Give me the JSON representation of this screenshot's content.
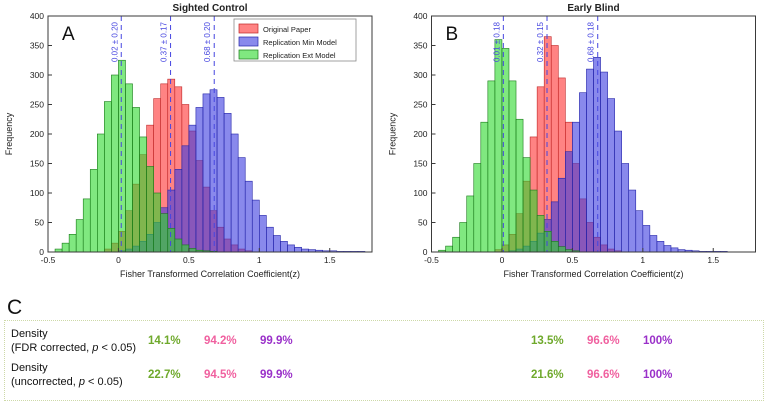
{
  "colors": {
    "original_face": "#ff3030",
    "original_edge": "#bf2626",
    "min_face": "#3a3ae0",
    "min_edge": "#2424a8",
    "ext_face": "#2bd82b",
    "ext_edge": "#1a7a1a",
    "mean_line": "#4646e0",
    "table_green": "#6fa92c",
    "table_pink": "#f0609f",
    "table_purple": "#9a30c9"
  },
  "chart_data": [
    {
      "type": "histogram",
      "panel": "A",
      "title": "Sighted Control",
      "xlabel": "Fisher Transformed Correlation Coefficient(z)",
      "ylabel": "Frequency",
      "xlim": [
        -0.5,
        1.8
      ],
      "ylim": [
        0,
        400
      ],
      "xticks": [
        -0.5,
        0,
        0.5,
        1,
        1.5
      ],
      "yticks": [
        0,
        50,
        100,
        150,
        200,
        250,
        300,
        350,
        400
      ],
      "bin_width": 0.05,
      "mean_line_color": "#4646e0",
      "show_legend": true,
      "legend_position": "top-center-inside",
      "series": [
        {
          "name": "Original Paper",
          "color": "#ff3030",
          "edge": "#bf2626",
          "bins_start": -0.1,
          "counts": [
            5,
            15,
            35,
            70,
            115,
            165,
            215,
            260,
            285,
            293,
            280,
            250,
            205,
            155,
            110,
            70,
            42,
            22,
            12,
            5,
            2
          ]
        },
        {
          "name": "Replication Min Model",
          "color": "#3a3ae0",
          "edge": "#2424a8",
          "bins_start": 0.0,
          "counts": [
            2,
            5,
            10,
            18,
            30,
            50,
            75,
            105,
            140,
            180,
            215,
            245,
            268,
            275,
            262,
            235,
            200,
            160,
            120,
            88,
            62,
            42,
            28,
            18,
            12,
            8,
            5,
            4,
            3,
            2,
            2,
            1,
            1,
            1,
            1
          ]
        },
        {
          "name": "Replication Ext Model",
          "color": "#2bd82b",
          "edge": "#1a7a1a",
          "bins_start": -0.45,
          "counts": [
            5,
            15,
            30,
            55,
            90,
            140,
            200,
            255,
            300,
            325,
            285,
            245,
            195,
            145,
            100,
            65,
            40,
            22,
            12,
            6,
            3,
            2,
            1
          ]
        }
      ],
      "mean_lines": [
        {
          "x": 0.02,
          "label": "0.02 ± 0.20"
        },
        {
          "x": 0.37,
          "label": "0.37 ± 0.17"
        },
        {
          "x": 0.68,
          "label": "0.68 ± 0.20"
        }
      ]
    },
    {
      "type": "histogram",
      "panel": "B",
      "title": "Early Blind",
      "xlabel": "Fisher Transformed Correlation Coefficient(z)",
      "ylabel": "Frequency",
      "xlim": [
        -0.5,
        1.8
      ],
      "ylim": [
        0,
        400
      ],
      "xticks": [
        -0.5,
        0,
        0.5,
        1,
        1.5
      ],
      "yticks": [
        0,
        50,
        100,
        150,
        200,
        250,
        300,
        350,
        400
      ],
      "bin_width": 0.05,
      "mean_line_color": "#4646e0",
      "show_legend": false,
      "series": [
        {
          "name": "Original Paper",
          "color": "#ff3030",
          "edge": "#bf2626",
          "bins_start": -0.05,
          "counts": [
            4,
            12,
            30,
            65,
            120,
            195,
            280,
            365,
            350,
            295,
            220,
            150,
            90,
            50,
            25,
            12,
            5,
            2
          ]
        },
        {
          "name": "Replication Min Model",
          "color": "#3a3ae0",
          "edge": "#2424a8",
          "bins_start": 0.05,
          "counts": [
            2,
            5,
            10,
            18,
            32,
            55,
            85,
            125,
            170,
            220,
            270,
            310,
            330,
            305,
            260,
            205,
            150,
            105,
            70,
            45,
            28,
            18,
            11,
            7,
            4,
            3,
            2,
            1,
            1,
            1,
            1
          ]
        },
        {
          "name": "Replication Ext Model",
          "color": "#2bd82b",
          "edge": "#1a7a1a",
          "bins_start": -0.45,
          "counts": [
            3,
            10,
            25,
            50,
            95,
            150,
            220,
            290,
            360,
            345,
            290,
            225,
            160,
            105,
            62,
            35,
            18,
            9,
            4,
            2
          ]
        }
      ],
      "mean_lines": [
        {
          "x": 0.01,
          "label": "0.01 ± 0.18"
        },
        {
          "x": 0.32,
          "label": "0.32 ± 0.15"
        },
        {
          "x": 0.68,
          "label": "0.68 ± 0.18"
        }
      ]
    }
  ],
  "panel_c": {
    "letter": "C",
    "rows": [
      {
        "label": "Density",
        "sub_prefix": "(FDR corrected, ",
        "sub_italic": "p",
        "sub_suffix": " < 0.05)",
        "left_values": [
          {
            "text": "14.1%",
            "color": "#6fa92c"
          },
          {
            "text": "94.2%",
            "color": "#f0609f"
          },
          {
            "text": "99.9%",
            "color": "#9a30c9"
          }
        ],
        "right_values": [
          {
            "text": "13.5%",
            "color": "#6fa92c"
          },
          {
            "text": "96.6%",
            "color": "#f0609f"
          },
          {
            "text": "100%",
            "color": "#9a30c9"
          }
        ]
      },
      {
        "label": "Density",
        "sub_prefix": "(uncorrected, ",
        "sub_italic": "p",
        "sub_suffix": " < 0.05)",
        "left_values": [
          {
            "text": "22.7%",
            "color": "#6fa92c"
          },
          {
            "text": "94.5%",
            "color": "#f0609f"
          },
          {
            "text": "99.9%",
            "color": "#9a30c9"
          }
        ],
        "right_values": [
          {
            "text": "21.6%",
            "color": "#6fa92c"
          },
          {
            "text": "96.6%",
            "color": "#f0609f"
          },
          {
            "text": "100%",
            "color": "#9a30c9"
          }
        ]
      }
    ]
  }
}
